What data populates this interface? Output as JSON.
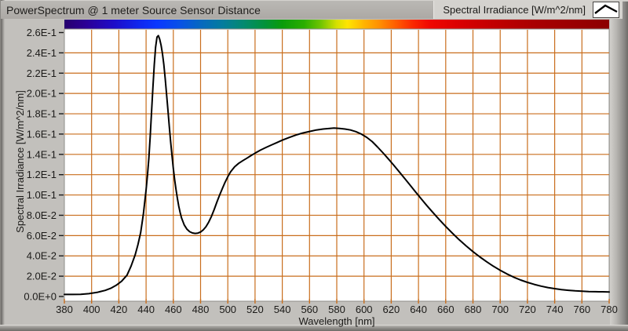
{
  "window": {
    "title": "PowerSpectrum @ 1 meter Source Sensor Distance"
  },
  "legend": {
    "label": "Spectral Irradiance [W/m^2/nm]",
    "swatch_icon": "line-plot-sample-icon"
  },
  "theme": {
    "window_bg": "#c2c0bc",
    "titlebar_bg": "#b1afab",
    "legend_bg": "#d4d2ce",
    "plot_bg": "#ffffff",
    "grid_color": "#c96e1d",
    "tick_color_y": "#1a1a1a",
    "curve_color": "#000000",
    "text_color": "#1b1a18"
  },
  "chart_data": {
    "type": "line",
    "title": "PowerSpectrum @ 1 meter Source Sensor Distance",
    "xlabel": "Wavelength [nm]",
    "ylabel": "Spectral Irradiance [W/m^2/nm]",
    "xlim": [
      380,
      780
    ],
    "ylim": [
      0,
      0.26
    ],
    "grid": true,
    "legend_position": "top-right",
    "x_ticks": [
      380,
      400,
      420,
      440,
      460,
      480,
      500,
      520,
      540,
      560,
      580,
      600,
      620,
      640,
      660,
      680,
      700,
      720,
      740,
      760,
      780
    ],
    "y_ticks": [
      {
        "label": "0.0E+0",
        "value": 0.0
      },
      {
        "label": "2.0E-2",
        "value": 0.02
      },
      {
        "label": "4.0E-2",
        "value": 0.04
      },
      {
        "label": "6.0E-2",
        "value": 0.06
      },
      {
        "label": "8.0E-2",
        "value": 0.08
      },
      {
        "label": "1.0E-1",
        "value": 0.1
      },
      {
        "label": "1.2E-1",
        "value": 0.12
      },
      {
        "label": "1.4E-1",
        "value": 0.14
      },
      {
        "label": "1.6E-1",
        "value": 0.16
      },
      {
        "label": "1.8E-1",
        "value": 0.18
      },
      {
        "label": "2.0E-1",
        "value": 0.2
      },
      {
        "label": "2.2E-1",
        "value": 0.22
      },
      {
        "label": "2.4E-1",
        "value": 0.24
      },
      {
        "label": "2.6E-1",
        "value": 0.26
      }
    ],
    "series": [
      {
        "name": "Spectral Irradiance [W/m^2/nm]",
        "points": [
          [
            380,
            0.002
          ],
          [
            386,
            0.002
          ],
          [
            392,
            0.0022
          ],
          [
            398,
            0.0028
          ],
          [
            404,
            0.004
          ],
          [
            410,
            0.006
          ],
          [
            414,
            0.008
          ],
          [
            418,
            0.011
          ],
          [
            422,
            0.015
          ],
          [
            426,
            0.021
          ],
          [
            429,
            0.03
          ],
          [
            432,
            0.041
          ],
          [
            434,
            0.051
          ],
          [
            436,
            0.063
          ],
          [
            438,
            0.081
          ],
          [
            440,
            0.105
          ],
          [
            441,
            0.119
          ],
          [
            442,
            0.136
          ],
          [
            443,
            0.157
          ],
          [
            444,
            0.181
          ],
          [
            445,
            0.206
          ],
          [
            446,
            0.228
          ],
          [
            447,
            0.2455
          ],
          [
            448,
            0.2555
          ],
          [
            449,
            0.257
          ],
          [
            450,
            0.2535
          ],
          [
            451,
            0.2475
          ],
          [
            452,
            0.2395
          ],
          [
            453,
            0.2285
          ],
          [
            454,
            0.215
          ],
          [
            455,
            0.2
          ],
          [
            456,
            0.184
          ],
          [
            457,
            0.168
          ],
          [
            458,
            0.153
          ],
          [
            459,
            0.139
          ],
          [
            460,
            0.126
          ],
          [
            461,
            0.115
          ],
          [
            462,
            0.105
          ],
          [
            463,
            0.0965
          ],
          [
            464,
            0.089
          ],
          [
            465,
            0.0827
          ],
          [
            466,
            0.0775
          ],
          [
            468,
            0.0705
          ],
          [
            470,
            0.0662
          ],
          [
            472,
            0.0638
          ],
          [
            474,
            0.0626
          ],
          [
            476,
            0.0621
          ],
          [
            478,
            0.0624
          ],
          [
            480,
            0.0635
          ],
          [
            482,
            0.0657
          ],
          [
            484,
            0.0688
          ],
          [
            486,
            0.0733
          ],
          [
            488,
            0.079
          ],
          [
            490,
            0.0858
          ],
          [
            492,
            0.093
          ],
          [
            494,
            0.1
          ],
          [
            496,
            0.1065
          ],
          [
            498,
            0.1125
          ],
          [
            500,
            0.118
          ],
          [
            502,
            0.1228
          ],
          [
            505,
            0.1278
          ],
          [
            508,
            0.1312
          ],
          [
            511,
            0.1338
          ],
          [
            514,
            0.1362
          ],
          [
            517,
            0.1388
          ],
          [
            520,
            0.1412
          ],
          [
            524,
            0.1442
          ],
          [
            528,
            0.1468
          ],
          [
            532,
            0.1492
          ],
          [
            536,
            0.1516
          ],
          [
            540,
            0.154
          ],
          [
            545,
            0.1566
          ],
          [
            550,
            0.159
          ],
          [
            555,
            0.161
          ],
          [
            560,
            0.1626
          ],
          [
            565,
            0.164
          ],
          [
            570,
            0.165
          ],
          [
            574,
            0.1654
          ],
          [
            578,
            0.166
          ],
          [
            582,
            0.1656
          ],
          [
            586,
            0.165
          ],
          [
            590,
            0.164
          ],
          [
            594,
            0.1624
          ],
          [
            598,
            0.16
          ],
          [
            602,
            0.1568
          ],
          [
            606,
            0.1526
          ],
          [
            610,
            0.1472
          ],
          [
            614,
            0.1414
          ],
          [
            618,
            0.1354
          ],
          [
            622,
            0.129
          ],
          [
            626,
            0.1226
          ],
          [
            630,
            0.116
          ],
          [
            634,
            0.1094
          ],
          [
            638,
            0.1028
          ],
          [
            642,
            0.0962
          ],
          [
            646,
            0.0898
          ],
          [
            650,
            0.0836
          ],
          [
            655,
            0.0762
          ],
          [
            660,
            0.069
          ],
          [
            665,
            0.0622
          ],
          [
            670,
            0.0558
          ],
          [
            675,
            0.0498
          ],
          [
            680,
            0.0442
          ],
          [
            685,
            0.039
          ],
          [
            690,
            0.0342
          ],
          [
            695,
            0.0298
          ],
          [
            700,
            0.0258
          ],
          [
            705,
            0.0222
          ],
          [
            710,
            0.019
          ],
          [
            715,
            0.0162
          ],
          [
            720,
            0.0139
          ],
          [
            725,
            0.0119
          ],
          [
            730,
            0.0102
          ],
          [
            735,
            0.0088
          ],
          [
            740,
            0.0077
          ],
          [
            745,
            0.0068
          ],
          [
            750,
            0.0061
          ],
          [
            755,
            0.0056
          ],
          [
            760,
            0.0052
          ],
          [
            765,
            0.0049
          ],
          [
            770,
            0.0047
          ],
          [
            775,
            0.0046
          ],
          [
            780,
            0.0045
          ]
        ]
      }
    ],
    "colorbar": {
      "meaning": "visible-light wavelength spectrum strip above plot, 380-780 nm",
      "stops": [
        {
          "pos": 0.0,
          "color": "#26006e"
        },
        {
          "pos": 0.04,
          "color": "#2b0096"
        },
        {
          "pos": 0.09,
          "color": "#1e0cc8"
        },
        {
          "pos": 0.14,
          "color": "#0f28f0"
        },
        {
          "pos": 0.17,
          "color": "#0a38ff"
        },
        {
          "pos": 0.21,
          "color": "#0850e8"
        },
        {
          "pos": 0.25,
          "color": "#0668c0"
        },
        {
          "pos": 0.29,
          "color": "#047c9e"
        },
        {
          "pos": 0.33,
          "color": "#038a6e"
        },
        {
          "pos": 0.37,
          "color": "#029338"
        },
        {
          "pos": 0.4,
          "color": "#0a9c0a"
        },
        {
          "pos": 0.44,
          "color": "#2aae00"
        },
        {
          "pos": 0.47,
          "color": "#6ec400"
        },
        {
          "pos": 0.5,
          "color": "#d6e000"
        },
        {
          "pos": 0.52,
          "color": "#ffe400"
        },
        {
          "pos": 0.55,
          "color": "#ffb400"
        },
        {
          "pos": 0.58,
          "color": "#ff8c00"
        },
        {
          "pos": 0.61,
          "color": "#ff5a00"
        },
        {
          "pos": 0.64,
          "color": "#fa2800"
        },
        {
          "pos": 0.67,
          "color": "#f00800"
        },
        {
          "pos": 0.72,
          "color": "#dc0000"
        },
        {
          "pos": 0.78,
          "color": "#c40000"
        },
        {
          "pos": 0.86,
          "color": "#aa0000"
        },
        {
          "pos": 1.0,
          "color": "#8c0000"
        }
      ]
    }
  }
}
